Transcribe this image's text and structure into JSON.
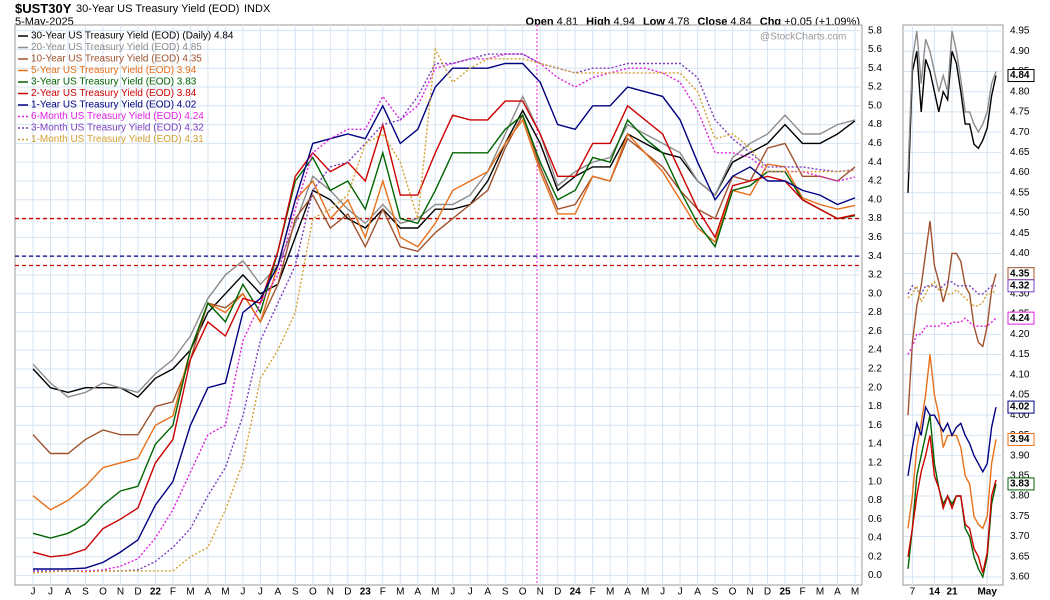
{
  "chart_data": [
    {
      "type": "line",
      "title": "$UST30Y",
      "subtitle": "30-Year US Treasury Yield (EOD)",
      "exchange": "INDX",
      "date": "5-May-2025",
      "quote": [
        {
          "label": "Open",
          "value": 4.81
        },
        {
          "label": "High",
          "value": 4.94
        },
        {
          "label": "Low",
          "value": 4.78
        },
        {
          "label": "Close",
          "value": 4.84
        },
        {
          "label": "Chg",
          "value": "+0.05 (+1.09%)"
        }
      ],
      "watermark": "@StockCharts.com",
      "categories": [
        "J",
        "J",
        "A",
        "S",
        "O",
        "N",
        "D",
        "22",
        "F",
        "M",
        "A",
        "M",
        "J",
        "J",
        "A",
        "S",
        "O",
        "N",
        "D",
        "23",
        "F",
        "M",
        "A",
        "M",
        "J",
        "J",
        "A",
        "S",
        "O",
        "N",
        "D",
        "24",
        "F",
        "M",
        "A",
        "M",
        "J",
        "J",
        "A",
        "S",
        "O",
        "N",
        "D",
        "25",
        "F",
        "M",
        "A",
        "M"
      ],
      "ylim": [
        -0.1,
        5.86
      ],
      "yticks": [
        {
          "value": 0,
          "label": "0.0"
        },
        0.2,
        0.4,
        0.6,
        0.8,
        {
          "value": 1,
          "label": "1.0"
        },
        1.2,
        1.4,
        1.6,
        1.8,
        {
          "value": 2,
          "label": "2.0"
        },
        2.2,
        2.4,
        2.6,
        2.8,
        {
          "value": 3,
          "label": "3.0"
        },
        3.2,
        3.4,
        3.6,
        3.8,
        {
          "value": 4,
          "label": "4.0"
        },
        4.2,
        4.4,
        4.6,
        4.8,
        {
          "value": 5,
          "label": "5.0"
        },
        5.2,
        5.4,
        5.6,
        5.8
      ],
      "grid": true,
      "hlines": [
        {
          "value": 3.8,
          "color": "#cc0000"
        },
        {
          "value": 3.4,
          "color": "#000080"
        },
        {
          "value": 3.3,
          "color": "#cc0000"
        }
      ],
      "series": [
        {
          "name": "30-Year US Treasury Yield (EOD) (Daily) 4.84",
          "color": "#000000",
          "style": "solid",
          "values": [
            2.2,
            2.0,
            1.95,
            2.0,
            2.0,
            2.0,
            1.9,
            2.1,
            2.2,
            2.4,
            2.8,
            3.0,
            3.2,
            3.0,
            3.1,
            3.6,
            4.1,
            4.0,
            3.8,
            3.7,
            3.9,
            3.7,
            3.7,
            3.9,
            3.9,
            3.95,
            4.2,
            4.6,
            4.95,
            4.6,
            4.1,
            4.25,
            4.35,
            4.35,
            4.7,
            4.6,
            4.5,
            4.45,
            4.2,
            4.05,
            4.4,
            4.5,
            4.6,
            4.8,
            4.6,
            4.6,
            4.7,
            4.84
          ]
        },
        {
          "name": "20-Year US Treasury Yield (EOD) 4.85",
          "color": "#8c8c8c",
          "style": "solid",
          "values": [
            2.25,
            2.05,
            1.9,
            1.95,
            2.05,
            2.0,
            1.95,
            2.15,
            2.3,
            2.55,
            2.95,
            3.2,
            3.35,
            3.1,
            3.3,
            3.75,
            4.25,
            4.1,
            3.9,
            3.75,
            3.95,
            3.75,
            3.8,
            3.95,
            3.95,
            4.05,
            4.3,
            4.7,
            5.1,
            4.7,
            4.15,
            4.3,
            4.4,
            4.45,
            4.8,
            4.7,
            4.6,
            4.5,
            4.2,
            4.05,
            4.45,
            4.6,
            4.7,
            4.9,
            4.7,
            4.7,
            4.8,
            4.85
          ]
        },
        {
          "name": "10-Year US Treasury Yield (EOD) 4.35",
          "color": "#a0522d",
          "style": "solid",
          "values": [
            1.5,
            1.3,
            1.3,
            1.45,
            1.55,
            1.5,
            1.5,
            1.8,
            1.85,
            2.3,
            2.9,
            2.85,
            3.0,
            2.7,
            3.1,
            3.8,
            4.05,
            3.7,
            3.85,
            3.5,
            3.9,
            3.5,
            3.45,
            3.65,
            3.8,
            3.95,
            4.1,
            4.55,
            4.9,
            4.35,
            3.9,
            3.95,
            4.25,
            4.2,
            4.65,
            4.5,
            4.35,
            4.1,
            3.9,
            3.8,
            4.25,
            4.2,
            4.55,
            4.6,
            4.25,
            4.25,
            4.2,
            4.35
          ]
        },
        {
          "name": "5-Year US Treasury Yield (EOD) 3.94",
          "color": "#e8701a",
          "style": "solid",
          "values": [
            0.85,
            0.7,
            0.8,
            0.95,
            1.15,
            1.2,
            1.25,
            1.6,
            1.7,
            2.4,
            2.9,
            2.8,
            3.0,
            2.7,
            3.3,
            4.0,
            4.2,
            3.8,
            4.0,
            3.6,
            4.2,
            3.6,
            3.5,
            3.75,
            4.1,
            4.2,
            4.3,
            4.6,
            4.85,
            4.3,
            3.85,
            3.85,
            4.25,
            4.2,
            4.7,
            4.5,
            4.3,
            4.0,
            3.7,
            3.55,
            4.1,
            4.05,
            4.38,
            4.35,
            4.02,
            3.95,
            3.9,
            3.94
          ]
        },
        {
          "name": "3-Year US Treasury Yield (EOD) 3.83",
          "color": "#006400",
          "style": "solid",
          "values": [
            0.45,
            0.4,
            0.45,
            0.55,
            0.75,
            0.9,
            0.95,
            1.4,
            1.6,
            2.4,
            2.9,
            2.7,
            3.1,
            2.8,
            3.45,
            4.2,
            4.45,
            4.1,
            4.2,
            3.9,
            4.5,
            3.8,
            3.75,
            4.1,
            4.5,
            4.5,
            4.5,
            4.75,
            4.9,
            4.4,
            4.0,
            4.1,
            4.45,
            4.4,
            4.85,
            4.65,
            4.5,
            4.1,
            3.75,
            3.5,
            4.1,
            4.15,
            4.3,
            4.3,
            4.0,
            3.9,
            3.8,
            3.83
          ]
        },
        {
          "name": "2-Year US Treasury Yield (EOD) 3.84",
          "color": "#cc0000",
          "style": "solid",
          "values": [
            0.25,
            0.2,
            0.22,
            0.28,
            0.5,
            0.6,
            0.72,
            1.2,
            1.45,
            2.3,
            2.7,
            2.55,
            2.95,
            2.9,
            3.45,
            4.25,
            4.5,
            4.3,
            4.4,
            4.2,
            4.8,
            4.05,
            4.05,
            4.5,
            4.9,
            4.85,
            4.85,
            5.05,
            5.05,
            4.7,
            4.25,
            4.25,
            4.6,
            4.6,
            5.0,
            4.85,
            4.7,
            4.3,
            3.9,
            3.6,
            4.15,
            4.2,
            4.25,
            4.2,
            4.0,
            3.9,
            3.8,
            3.84
          ]
        },
        {
          "name": "1-Year US Treasury Yield (EOD) 4.02",
          "color": "#000080",
          "style": "solid",
          "values": [
            0.07,
            0.07,
            0.07,
            0.08,
            0.14,
            0.25,
            0.38,
            0.75,
            1.0,
            1.6,
            2.0,
            2.05,
            2.8,
            2.95,
            3.3,
            4.0,
            4.6,
            4.65,
            4.7,
            4.65,
            5.0,
            4.6,
            4.75,
            5.2,
            5.4,
            5.4,
            5.4,
            5.45,
            5.45,
            5.25,
            4.8,
            4.75,
            5.0,
            5.0,
            5.2,
            5.15,
            5.1,
            4.85,
            4.4,
            4.0,
            4.25,
            4.35,
            4.2,
            4.2,
            4.1,
            4.05,
            3.95,
            4.02
          ]
        },
        {
          "name": "6-Month US Treasury Yield (EOD) 4.24",
          "color": "#e020e0",
          "style": "dotted",
          "values": [
            0.05,
            0.05,
            0.05,
            0.05,
            0.06,
            0.1,
            0.18,
            0.4,
            0.7,
            1.1,
            1.5,
            1.6,
            2.5,
            2.9,
            3.2,
            3.9,
            4.5,
            4.65,
            4.75,
            4.75,
            5.1,
            4.85,
            5.0,
            5.4,
            5.45,
            5.5,
            5.5,
            5.55,
            5.55,
            5.45,
            5.3,
            5.2,
            5.3,
            5.35,
            5.4,
            5.4,
            5.35,
            5.25,
            4.95,
            4.5,
            4.5,
            4.45,
            4.3,
            4.3,
            4.3,
            4.25,
            4.2,
            4.24
          ]
        },
        {
          "name": "3-Month US Treasury Yield (EOD) 4.32",
          "color": "#7a3fc0",
          "style": "dotted",
          "values": [
            0.05,
            0.05,
            0.05,
            0.04,
            0.05,
            0.05,
            0.06,
            0.15,
            0.3,
            0.5,
            0.85,
            1.15,
            1.7,
            2.5,
            2.9,
            3.3,
            4.1,
            4.35,
            4.4,
            4.6,
            4.8,
            4.85,
            5.1,
            5.45,
            5.45,
            5.5,
            5.55,
            5.55,
            5.55,
            5.45,
            5.4,
            5.35,
            5.4,
            5.4,
            5.45,
            5.45,
            5.45,
            5.45,
            5.3,
            4.85,
            4.65,
            4.5,
            4.35,
            4.35,
            4.35,
            4.32,
            4.3,
            4.32
          ]
        },
        {
          "name": "1-Month US Treasury Yield (EOD) 4.31",
          "color": "#d4a030",
          "style": "dotted",
          "values": [
            0.03,
            0.04,
            0.05,
            0.04,
            0.05,
            0.05,
            0.05,
            0.05,
            0.05,
            0.2,
            0.3,
            0.7,
            1.2,
            2.1,
            2.4,
            2.8,
            3.8,
            3.9,
            4.05,
            4.6,
            4.7,
            4.4,
            3.8,
            5.6,
            5.25,
            5.4,
            5.5,
            5.5,
            5.5,
            5.45,
            5.4,
            5.35,
            5.35,
            5.35,
            5.35,
            5.35,
            5.35,
            5.35,
            5.15,
            4.65,
            4.7,
            4.55,
            4.3,
            4.3,
            4.3,
            4.3,
            4.3,
            4.31
          ]
        }
      ]
    },
    {
      "type": "line",
      "categories": [
        null,
        "7",
        null,
        null,
        null,
        null,
        "14",
        null,
        null,
        null,
        "21",
        null,
        null,
        null,
        null,
        null,
        null,
        null,
        "May",
        null,
        null
      ],
      "ylim": [
        3.58,
        4.965
      ],
      "yticks": [
        {
          "value": 3.6,
          "label": "3.60"
        },
        3.65,
        {
          "value": 3.7,
          "label": "3.70"
        },
        3.75,
        {
          "value": 3.8,
          "label": "3.80"
        },
        3.85,
        {
          "value": 3.9,
          "label": "3.90"
        },
        3.95,
        {
          "value": 4,
          "label": "4.00"
        },
        4.05,
        {
          "value": 4.1,
          "label": "4.10"
        },
        4.15,
        {
          "value": 4.2,
          "label": "4.20"
        },
        4.25,
        {
          "value": 4.3,
          "label": "4.30"
        },
        4.35,
        {
          "value": 4.4,
          "label": "4.40"
        },
        4.45,
        {
          "value": 4.5,
          "label": "4.50"
        },
        4.55,
        {
          "value": 4.6,
          "label": "4.60"
        },
        4.65,
        {
          "value": 4.7,
          "label": "4.70"
        },
        4.75,
        {
          "value": 4.8,
          "label": "4.80"
        },
        4.85,
        {
          "value": 4.9,
          "label": "4.90"
        },
        4.95
      ],
      "grid": true,
      "series": [
        {
          "color": "#000000",
          "style": "solid",
          "label_last": true,
          "values": [
            4.55,
            4.85,
            4.9,
            4.75,
            4.88,
            4.85,
            4.8,
            4.75,
            4.8,
            4.78,
            4.9,
            4.87,
            4.8,
            4.72,
            4.72,
            4.67,
            4.66,
            4.68,
            4.71,
            4.79,
            4.84
          ]
        },
        {
          "color": "#8c8c8c",
          "style": "solid",
          "label_last": false,
          "values": [
            4.6,
            4.88,
            4.95,
            4.82,
            4.93,
            4.9,
            4.85,
            4.8,
            4.84,
            4.8,
            4.95,
            4.9,
            4.83,
            4.75,
            4.75,
            4.72,
            4.7,
            4.72,
            4.75,
            4.82,
            4.85
          ]
        },
        {
          "color": "#a0522d",
          "style": "solid",
          "label_last": true,
          "values": [
            4.0,
            4.18,
            4.27,
            4.32,
            4.4,
            4.48,
            4.37,
            4.33,
            4.28,
            4.32,
            4.4,
            4.4,
            4.38,
            4.32,
            4.3,
            4.22,
            4.18,
            4.17,
            4.22,
            4.31,
            4.35
          ]
        },
        {
          "color": "#e8701a",
          "style": "solid",
          "label_last": true,
          "values": [
            3.72,
            3.8,
            3.92,
            3.98,
            4.05,
            4.15,
            4.05,
            4.0,
            3.92,
            3.95,
            3.95,
            3.95,
            3.92,
            3.85,
            3.83,
            3.75,
            3.73,
            3.72,
            3.75,
            3.88,
            3.94
          ]
        },
        {
          "color": "#006400",
          "style": "solid",
          "label_last": true,
          "values": [
            3.62,
            3.72,
            3.85,
            3.9,
            3.95,
            4.0,
            3.88,
            3.82,
            3.78,
            3.8,
            3.78,
            3.8,
            3.8,
            3.72,
            3.7,
            3.65,
            3.62,
            3.6,
            3.65,
            3.78,
            3.83
          ]
        },
        {
          "color": "#cc0000",
          "style": "solid",
          "label_last": false,
          "values": [
            3.65,
            3.72,
            3.8,
            3.86,
            3.9,
            3.95,
            3.85,
            3.82,
            3.77,
            3.8,
            3.77,
            3.8,
            3.8,
            3.73,
            3.72,
            3.67,
            3.65,
            3.61,
            3.66,
            3.8,
            3.84
          ]
        },
        {
          "color": "#000080",
          "style": "solid",
          "label_last": true,
          "values": [
            3.85,
            3.92,
            3.98,
            3.95,
            4.02,
            4.0,
            4.0,
            3.98,
            3.96,
            3.98,
            3.95,
            3.97,
            3.98,
            3.95,
            3.93,
            3.9,
            3.88,
            3.86,
            3.88,
            3.97,
            4.02
          ]
        },
        {
          "color": "#e020e0",
          "style": "dotted",
          "label_last": true,
          "values": [
            4.15,
            4.17,
            4.2,
            4.2,
            4.22,
            4.22,
            4.22,
            4.22,
            4.23,
            4.22,
            4.23,
            4.23,
            4.23,
            4.24,
            4.23,
            4.22,
            4.22,
            4.22,
            4.22,
            4.23,
            4.24
          ]
        },
        {
          "color": "#7a3fc0",
          "style": "dotted",
          "label_last": true,
          "values": [
            4.3,
            4.32,
            4.31,
            4.3,
            4.32,
            4.32,
            4.32,
            4.31,
            4.32,
            4.33,
            4.33,
            4.32,
            4.32,
            4.32,
            4.32,
            4.31,
            4.3,
            4.3,
            4.31,
            4.32,
            4.32
          ]
        },
        {
          "color": "#d4a030",
          "style": "dotted",
          "label_last": false,
          "values": [
            4.29,
            4.3,
            4.32,
            4.28,
            4.3,
            4.32,
            4.33,
            4.31,
            4.31,
            4.3,
            4.3,
            4.31,
            4.3,
            4.29,
            4.28,
            4.27,
            4.27,
            4.28,
            4.3,
            4.3,
            4.31
          ]
        }
      ]
    }
  ]
}
